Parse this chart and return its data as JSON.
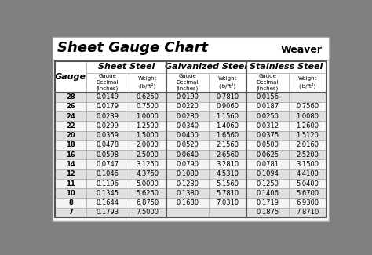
{
  "title": "Sheet Gauge Chart",
  "outer_bg": "#808080",
  "inner_bg": "#ffffff",
  "title_bg": "#ffffff",
  "header_group_bg": "#ffffff",
  "subheader_bg": "#ffffff",
  "row_bg_light": "#e0e0e0",
  "row_bg_white": "#f5f5f5",
  "divider_color": "#555555",
  "border_color": "#555555",
  "cell_border": "#aaaaaa",
  "gauges": [
    28,
    26,
    24,
    22,
    20,
    18,
    16,
    14,
    12,
    11,
    10,
    8,
    7
  ],
  "sheet_steel": {
    "decimal": [
      "0.0149",
      "0.0179",
      "0.0239",
      "0.0299",
      "0.0359",
      "0.0478",
      "0.0598",
      "0.0747",
      "0.1046",
      "0.1196",
      "0.1345",
      "0.1644",
      "0.1793"
    ],
    "weight": [
      "0.6250",
      "0.7500",
      "1.0000",
      "1.2500",
      "1.5000",
      "2.0000",
      "2.5000",
      "3.1250",
      "4.3750",
      "5.0000",
      "5.6250",
      "6.8750",
      "7.5000"
    ]
  },
  "galvanized_steel": {
    "decimal": [
      "0.0190",
      "0.0220",
      "0.0280",
      "0.0340",
      "0.0400",
      "0.0520",
      "0.0640",
      "0.0790",
      "0.1080",
      "0.1230",
      "0.1380",
      "0.1680",
      ""
    ],
    "weight": [
      "0.7810",
      "0.9060",
      "1.1560",
      "1.4060",
      "1.6560",
      "2.1560",
      "2.6560",
      "3.2810",
      "4.5310",
      "5.1560",
      "5.7810",
      "7.0310",
      ""
    ]
  },
  "stainless_steel": {
    "decimal": [
      "0.0156",
      "0.0187",
      "0.0250",
      "0.0312",
      "0.0375",
      "0.0500",
      "0.0625",
      "0.0781",
      "0.1094",
      "0.1250",
      "0.1406",
      "0.1719",
      "0.1875"
    ],
    "weight": [
      "",
      "0.7560",
      "1.0080",
      "1.2600",
      "1.5120",
      "2.0160",
      "2.5200",
      "3.1500",
      "4.4100",
      "5.0400",
      "5.6700",
      "6.9300",
      "7.8710"
    ]
  }
}
